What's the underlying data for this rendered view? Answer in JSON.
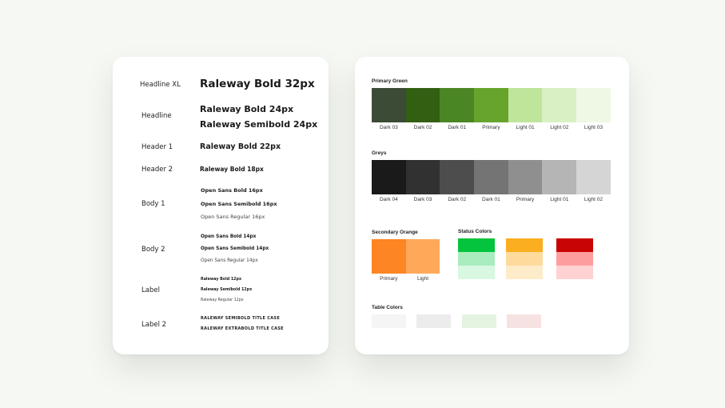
{
  "typography": {
    "rows": [
      {
        "label": "Headline XL",
        "samples": [
          "Raleway Bold 32px"
        ]
      },
      {
        "label": "Headline",
        "samples": [
          "Raleway Bold 24px",
          "Raleway Semibold 24px"
        ]
      },
      {
        "label": "Header 1",
        "samples": [
          "Raleway Bold 22px"
        ]
      },
      {
        "label": "Header 2",
        "samples": [
          "Raleway Bold 18px"
        ]
      },
      {
        "label": "Body 1",
        "samples": [
          "Open Sans Bold 16px",
          "Open Sans Semibold 16px",
          "Open Sans Regular 16px"
        ]
      },
      {
        "label": "Body 2",
        "samples": [
          "Open Sans Bold 14px",
          "Open Sans Semibold 14px",
          "Open Sans Regular 14px"
        ]
      },
      {
        "label": "Label",
        "samples": [
          "Raleway Bold 12px",
          "Raleway Semibold 12px",
          "Raleway Regular 12px"
        ]
      },
      {
        "label": "Label 2",
        "samples": [
          "RALEWAY SEMIBOLD TITLE CASE",
          "RALEWAY EXTRABOLD TITLE CASE"
        ]
      }
    ]
  },
  "colors": {
    "primary_green": {
      "title": "Primary Green",
      "swatches": [
        {
          "name": "Dark 03",
          "hex": "#3c4b36"
        },
        {
          "name": "Dark 02",
          "hex": "#335f12"
        },
        {
          "name": "Dark 01",
          "hex": "#4b8624"
        },
        {
          "name": "Primary",
          "hex": "#66a42c"
        },
        {
          "name": "Light 01",
          "hex": "#bfe59b"
        },
        {
          "name": "Light 02",
          "hex": "#d9f0c4"
        },
        {
          "name": "Light 03",
          "hex": "#eef8e5"
        }
      ]
    },
    "greys": {
      "title": "Greys",
      "swatches": [
        {
          "name": "Dark 04",
          "hex": "#1a1a1a"
        },
        {
          "name": "Dark 03",
          "hex": "#313131"
        },
        {
          "name": "Dark 02",
          "hex": "#4d4d4d"
        },
        {
          "name": "Dark 01",
          "hex": "#747474"
        },
        {
          "name": "Primary",
          "hex": "#8f8f8f"
        },
        {
          "name": "Light 01",
          "hex": "#b5b5b5"
        },
        {
          "name": "Light 02",
          "hex": "#d5d5d5"
        }
      ]
    },
    "secondary_orange": {
      "title": "Secondary Orange",
      "swatches": [
        {
          "name": "Primary",
          "hex": "#fd8523"
        },
        {
          "name": "Light",
          "hex": "#fea85a"
        }
      ]
    },
    "status": {
      "title": "Status Colors",
      "groups": [
        [
          "#04c33c",
          "#a9ecbe",
          "#d8f8e1"
        ],
        [
          "#fbae20",
          "#fedb9d",
          "#feebc9"
        ],
        [
          "#c80405",
          "#fe9d9d",
          "#fed2d2"
        ]
      ]
    },
    "table": {
      "title": "Table Colors",
      "swatches": [
        "#f5f5f5",
        "#ececec",
        "#e4f4e1",
        "#f7e2e2"
      ]
    }
  }
}
